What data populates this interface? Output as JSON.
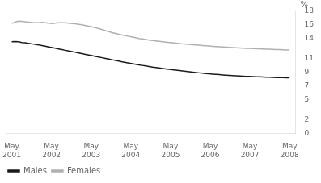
{
  "chart_data": {
    "type": "line",
    "ylabel": "%",
    "x": [
      0,
      0.0843,
      0.1687,
      0.253,
      0.3373,
      0.4217,
      0.506,
      0.5904,
      0.6747,
      0.759,
      0.8434,
      0.9277,
      1.012,
      1.0964,
      1.1807,
      1.2651,
      1.3494,
      1.4337,
      1.5181,
      1.6024,
      1.6867,
      1.7711,
      1.8554,
      1.9398,
      2.0241,
      2.1084,
      2.1928,
      2.2771,
      2.3614,
      2.4458,
      2.5301,
      2.6145,
      2.6988,
      2.7831,
      2.8675,
      2.9518,
      3.0361,
      3.1205,
      3.2048,
      3.2892,
      3.3735,
      3.4578,
      3.5422,
      3.6265,
      3.7108,
      3.7952,
      3.8795,
      3.9639,
      4.0482,
      4.1325,
      4.2169,
      4.3012,
      4.3855,
      4.4699,
      4.5542,
      4.6386,
      4.7229,
      4.8072,
      4.8916,
      4.9759,
      5.0602,
      5.1446,
      5.2289,
      5.3133,
      5.3976,
      5.4819,
      5.5663,
      5.6506,
      5.7349,
      5.8193,
      5.9036,
      5.988,
      6.0723,
      6.1566,
      6.241,
      6.3253,
      6.4096,
      6.494,
      6.5783,
      6.6627,
      6.747,
      6.8313,
      6.9157,
      7
    ],
    "series": [
      {
        "name": "Males",
        "color": "#1a1a1a",
        "values": [
          13.5,
          13.55,
          13.5,
          13.4,
          13.35,
          13.28,
          13.2,
          13.12,
          13.05,
          12.95,
          12.85,
          12.75,
          12.65,
          12.55,
          12.45,
          12.35,
          12.25,
          12.15,
          12.05,
          11.95,
          11.85,
          11.75,
          11.65,
          11.55,
          11.45,
          11.35,
          11.25,
          11.15,
          11.05,
          10.95,
          10.85,
          10.75,
          10.65,
          10.55,
          10.45,
          10.36,
          10.27,
          10.18,
          10.1,
          10.02,
          9.94,
          9.86,
          9.78,
          9.71,
          9.64,
          9.57,
          9.5,
          9.43,
          9.37,
          9.31,
          9.25,
          9.19,
          9.13,
          9.07,
          9.02,
          8.97,
          8.92,
          8.87,
          8.82,
          8.78,
          8.74,
          8.7,
          8.66,
          8.62,
          8.58,
          8.55,
          8.52,
          8.49,
          8.46,
          8.43,
          8.41,
          8.39,
          8.37,
          8.35,
          8.33,
          8.31,
          8.29,
          8.27,
          8.25,
          8.23,
          8.22,
          8.21,
          8.2,
          8.2
        ]
      },
      {
        "name": "Females",
        "color": "#b0b0b0",
        "values": [
          16.2,
          16.4,
          16.55,
          16.5,
          16.45,
          16.4,
          16.35,
          16.3,
          16.3,
          16.35,
          16.3,
          16.25,
          16.2,
          16.25,
          16.3,
          16.32,
          16.3,
          16.25,
          16.2,
          16.15,
          16.08,
          16.0,
          15.9,
          15.8,
          15.7,
          15.58,
          15.45,
          15.3,
          15.15,
          15.0,
          14.85,
          14.72,
          14.6,
          14.5,
          14.4,
          14.3,
          14.2,
          14.1,
          14.0,
          13.92,
          13.84,
          13.76,
          13.68,
          13.62,
          13.56,
          13.5,
          13.45,
          13.4,
          13.35,
          13.3,
          13.25,
          13.2,
          13.16,
          13.12,
          13.08,
          13.04,
          13.0,
          12.96,
          12.92,
          12.88,
          12.84,
          12.8,
          12.77,
          12.74,
          12.71,
          12.68,
          12.65,
          12.62,
          12.59,
          12.56,
          12.54,
          12.52,
          12.5,
          12.48,
          12.46,
          12.44,
          12.42,
          12.4,
          12.38,
          12.36,
          12.34,
          12.32,
          12.3,
          12.28
        ]
      }
    ],
    "xlim": [
      -0.15,
      7.15
    ],
    "xticks": [
      {
        "value": 0,
        "label": "May\n2001"
      },
      {
        "value": 1,
        "label": "May\n2002"
      },
      {
        "value": 2,
        "label": "May\n2003"
      },
      {
        "value": 3,
        "label": "May\n2004"
      },
      {
        "value": 4,
        "label": "May\n2005"
      },
      {
        "value": 5,
        "label": "May\n2006"
      },
      {
        "value": 6,
        "label": "May\n2007"
      },
      {
        "value": 7,
        "label": "May\n2008"
      }
    ],
    "ylim": [
      0,
      18
    ],
    "yticks": [
      0,
      2,
      5,
      7,
      9,
      11,
      14,
      16,
      18
    ],
    "grid": false,
    "legend": "lower left"
  }
}
